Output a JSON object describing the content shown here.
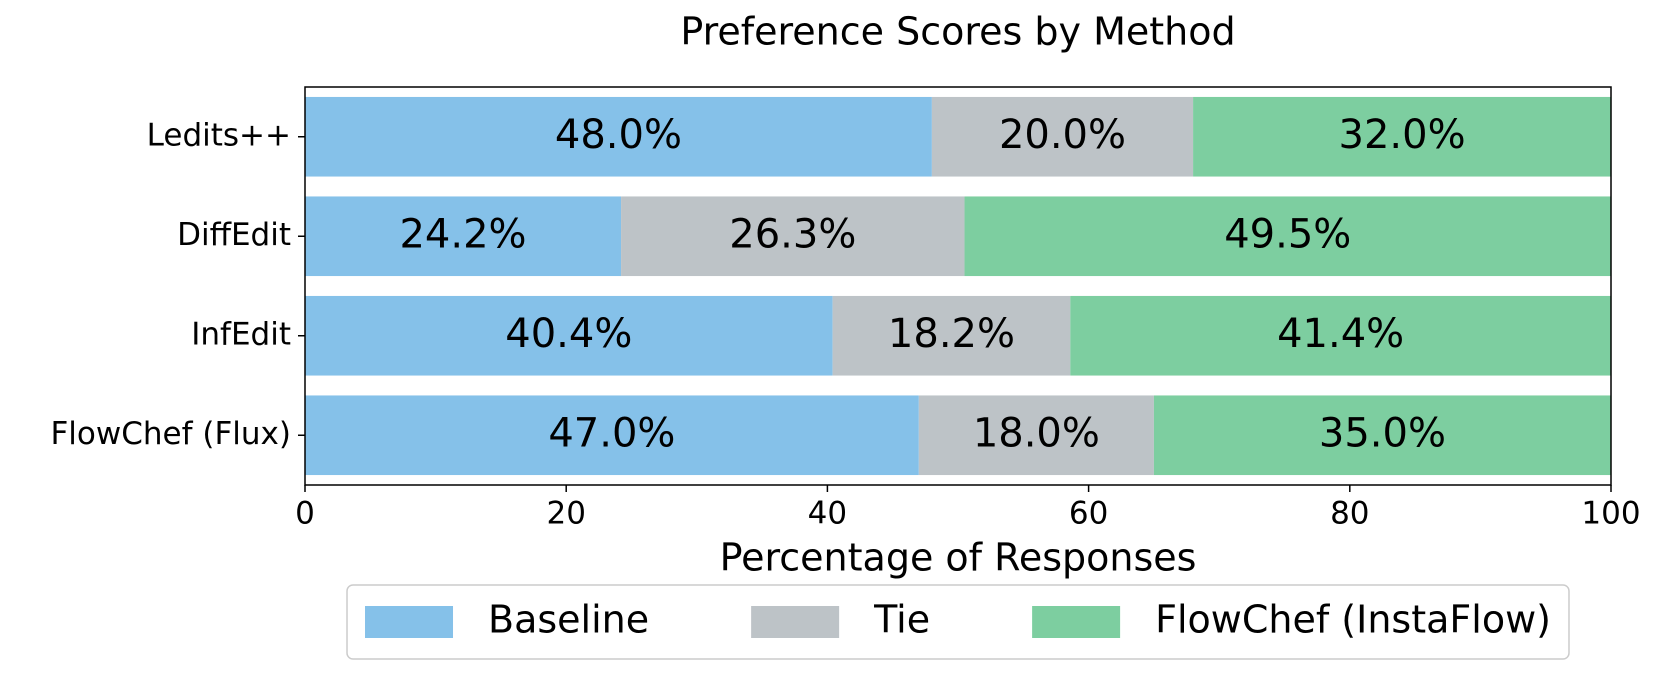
{
  "chart_data": {
    "type": "stacked-barh",
    "title": "Preference Scores by Method",
    "xlabel": "Percentage of Responses",
    "categories": [
      "Ledits++",
      "DiffEdit",
      "InfEdit",
      "FlowChef (Flux)"
    ],
    "series": [
      {
        "name": "Baseline",
        "color": "#85c1e9",
        "values": [
          48.0,
          24.2,
          40.4,
          47.0
        ],
        "value_labels": [
          "48.0%",
          "24.2%",
          "40.4%",
          "47.0%"
        ]
      },
      {
        "name": "Tie",
        "color": "#bdc3c7",
        "values": [
          20.0,
          26.3,
          18.2,
          18.0
        ],
        "value_labels": [
          "20.0%",
          "26.3%",
          "18.2%",
          "18.0%"
        ]
      },
      {
        "name": "FlowChef (InstaFlow)",
        "color": "#7dcea0",
        "values": [
          32.0,
          49.5,
          41.4,
          35.0
        ],
        "value_labels": [
          "32.0%",
          "49.5%",
          "41.4%",
          "35.0%"
        ]
      }
    ],
    "xlim": [
      0,
      100
    ],
    "xticks": [
      0,
      20,
      40,
      60,
      80,
      100
    ],
    "grid": false,
    "legend": "bottom"
  }
}
